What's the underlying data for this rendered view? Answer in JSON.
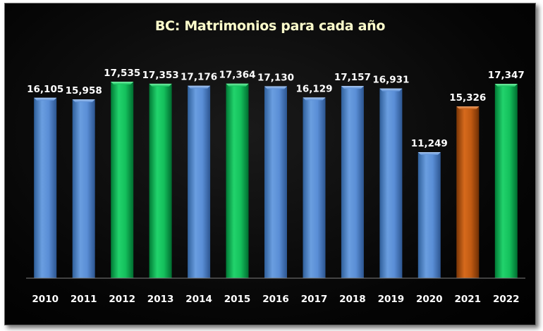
{
  "chart_data": {
    "type": "bar",
    "title": "BC: Matrimonios para cada año",
    "categories": [
      "2010",
      "2011",
      "2012",
      "2013",
      "2014",
      "2015",
      "2016",
      "2017",
      "2018",
      "2019",
      "2020",
      "2021",
      "2022"
    ],
    "values": [
      16105,
      15958,
      17535,
      17353,
      17176,
      17364,
      17130,
      16129,
      17157,
      16931,
      11249,
      15326,
      17347
    ],
    "value_labels": [
      "16,105",
      "15,958",
      "17,535",
      "17,353",
      "17,176",
      "17,364",
      "17,130",
      "16,129",
      "17,157",
      "16,931",
      "11,249",
      "15,326",
      "17,347"
    ],
    "bar_colors": [
      "blue",
      "blue",
      "green",
      "green",
      "blue",
      "green",
      "blue",
      "blue",
      "blue",
      "blue",
      "blue",
      "orange",
      "green"
    ],
    "ylim": [
      0,
      18000
    ],
    "grid": false,
    "legend": "none"
  },
  "colors": {
    "blue": "#4f81bd",
    "green": "#00b050",
    "orange": "#c0580f",
    "title": "#ffffcc",
    "text": "#ffffff",
    "background": "#000000",
    "axis_line": "#7f7f7f"
  }
}
